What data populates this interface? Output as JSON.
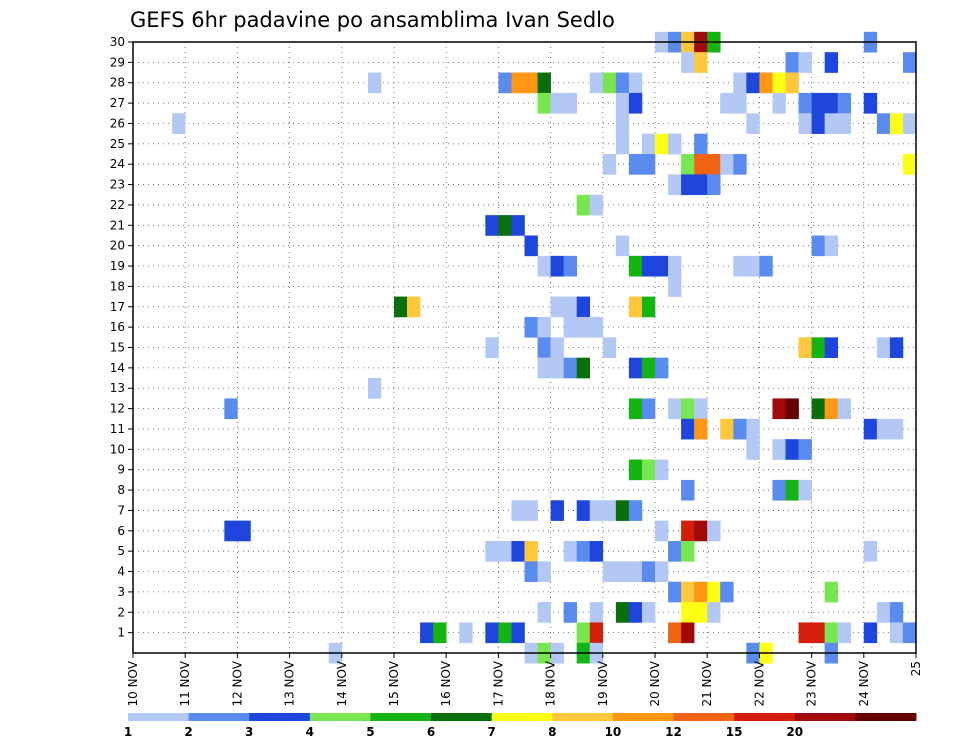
{
  "chart_data": {
    "type": "heatmap",
    "title": "GEFS 6hr padavine po ansamblima Ivan Sedlo",
    "xlabel": "",
    "ylabel": "",
    "x_range": [
      10,
      25
    ],
    "y_range": [
      0,
      30
    ],
    "x_tick_labels": [
      "10 NOV",
      "11 NOV",
      "12 NOV",
      "13 NOV",
      "14 NOV",
      "15 NOV",
      "16 NOV",
      "17 NOV",
      "18 NOV",
      "19 NOV",
      "20 NOV",
      "21 NOV",
      "22 NOV",
      "23 NOV",
      "24 NOV",
      "25"
    ],
    "y_tick_labels": [
      "1",
      "2",
      "3",
      "4",
      "5",
      "6",
      "7",
      "8",
      "9",
      "10",
      "11",
      "12",
      "13",
      "14",
      "15",
      "16",
      "17",
      "18",
      "19",
      "20",
      "21",
      "22",
      "23",
      "24",
      "25",
      "26",
      "27",
      "28",
      "29",
      "30"
    ],
    "grid": true,
    "colorbar": {
      "colors": [
        "#b4c8f5",
        "#5a8cf0",
        "#1e46dc",
        "#78e650",
        "#14b414",
        "#0a6e0a",
        "#ffff14",
        "#ffc83c",
        "#ff9614",
        "#f06414",
        "#d21e0a",
        "#a00a0a",
        "#640000"
      ],
      "labels": [
        "1",
        "2",
        "3",
        "4",
        "5",
        "6",
        "7",
        "8",
        "10",
        "12",
        "15",
        "20"
      ]
    },
    "cells": [
      [
        30,
        20.0,
        0
      ],
      [
        30,
        20.25,
        1
      ],
      [
        30,
        20.5,
        7
      ],
      [
        30,
        20.75,
        11
      ],
      [
        30,
        21.0,
        4
      ],
      [
        30,
        24.0,
        1
      ],
      [
        29,
        20.5,
        0
      ],
      [
        29,
        20.75,
        7
      ],
      [
        29,
        22.5,
        1
      ],
      [
        29,
        22.75,
        0
      ],
      [
        29,
        23.25,
        2
      ],
      [
        29,
        24.75,
        1
      ],
      [
        28,
        14.5,
        0
      ],
      [
        28,
        17.0,
        1
      ],
      [
        28,
        17.25,
        8
      ],
      [
        28,
        17.5,
        8
      ],
      [
        28,
        17.75,
        5
      ],
      [
        28,
        18.75,
        0
      ],
      [
        28,
        19.0,
        3
      ],
      [
        28,
        19.25,
        1
      ],
      [
        28,
        19.5,
        0
      ],
      [
        28,
        21.5,
        0
      ],
      [
        28,
        21.75,
        2
      ],
      [
        28,
        22.0,
        8
      ],
      [
        28,
        22.25,
        6
      ],
      [
        28,
        22.5,
        7
      ],
      [
        27,
        17.75,
        3
      ],
      [
        27,
        18.0,
        0
      ],
      [
        27,
        18.25,
        0
      ],
      [
        27,
        19.25,
        0
      ],
      [
        27,
        19.5,
        2
      ],
      [
        27,
        21.25,
        0
      ],
      [
        27,
        21.5,
        0
      ],
      [
        27,
        22.25,
        0
      ],
      [
        27,
        22.75,
        1
      ],
      [
        27,
        23.0,
        2
      ],
      [
        27,
        23.25,
        2
      ],
      [
        27,
        23.5,
        1
      ],
      [
        27,
        24.0,
        2
      ],
      [
        26,
        10.75,
        0
      ],
      [
        26,
        19.25,
        0
      ],
      [
        26,
        21.75,
        0
      ],
      [
        26,
        22.75,
        0
      ],
      [
        26,
        23.0,
        2
      ],
      [
        26,
        23.25,
        0
      ],
      [
        26,
        23.5,
        0
      ],
      [
        26,
        24.25,
        1
      ],
      [
        26,
        24.5,
        6
      ],
      [
        26,
        24.75,
        0
      ],
      [
        25,
        19.25,
        0
      ],
      [
        25,
        19.75,
        0
      ],
      [
        25,
        20.0,
        6
      ],
      [
        25,
        20.25,
        0
      ],
      [
        25,
        20.75,
        1
      ],
      [
        24,
        19.0,
        0
      ],
      [
        24,
        19.5,
        1
      ],
      [
        24,
        19.75,
        1
      ],
      [
        24,
        20.5,
        3
      ],
      [
        24,
        20.75,
        9
      ],
      [
        24,
        21.0,
        9
      ],
      [
        24,
        21.25,
        0
      ],
      [
        24,
        21.5,
        1
      ],
      [
        24,
        24.75,
        6
      ],
      [
        23,
        20.25,
        0
      ],
      [
        23,
        20.5,
        2
      ],
      [
        23,
        20.75,
        2
      ],
      [
        23,
        21.0,
        1
      ],
      [
        22,
        18.5,
        3
      ],
      [
        22,
        18.75,
        0
      ],
      [
        21,
        16.75,
        2
      ],
      [
        21,
        17.0,
        5
      ],
      [
        21,
        17.25,
        2
      ],
      [
        20,
        17.5,
        2
      ],
      [
        20,
        19.25,
        0
      ],
      [
        20,
        23.0,
        1
      ],
      [
        20,
        23.25,
        0
      ],
      [
        19,
        17.75,
        0
      ],
      [
        19,
        18.0,
        2
      ],
      [
        19,
        18.25,
        1
      ],
      [
        19,
        19.5,
        4
      ],
      [
        19,
        19.75,
        2
      ],
      [
        19,
        20.0,
        2
      ],
      [
        19,
        20.25,
        0
      ],
      [
        19,
        21.5,
        0
      ],
      [
        19,
        21.75,
        0
      ],
      [
        19,
        22.0,
        1
      ],
      [
        18,
        20.25,
        0
      ],
      [
        17,
        15.0,
        5
      ],
      [
        17,
        15.25,
        7
      ],
      [
        17,
        18.0,
        0
      ],
      [
        17,
        18.25,
        0
      ],
      [
        17,
        18.5,
        2
      ],
      [
        17,
        19.5,
        7
      ],
      [
        17,
        19.75,
        4
      ],
      [
        16,
        17.5,
        1
      ],
      [
        16,
        17.75,
        0
      ],
      [
        16,
        18.25,
        0
      ],
      [
        16,
        18.5,
        0
      ],
      [
        16,
        18.75,
        0
      ],
      [
        15,
        16.75,
        0
      ],
      [
        15,
        17.75,
        1
      ],
      [
        15,
        18.0,
        0
      ],
      [
        15,
        19.0,
        0
      ],
      [
        15,
        22.75,
        7
      ],
      [
        15,
        23.0,
        4
      ],
      [
        15,
        23.25,
        2
      ],
      [
        15,
        24.25,
        0
      ],
      [
        15,
        24.5,
        2
      ],
      [
        14,
        17.75,
        0
      ],
      [
        14,
        18.0,
        0
      ],
      [
        14,
        18.25,
        1
      ],
      [
        14,
        18.5,
        5
      ],
      [
        14,
        19.5,
        2
      ],
      [
        14,
        19.75,
        4
      ],
      [
        14,
        20.0,
        1
      ],
      [
        13,
        14.5,
        0
      ],
      [
        12,
        11.75,
        1
      ],
      [
        12,
        19.5,
        4
      ],
      [
        12,
        19.75,
        1
      ],
      [
        12,
        20.25,
        0
      ],
      [
        12,
        20.5,
        3
      ],
      [
        12,
        20.75,
        0
      ],
      [
        12,
        22.25,
        11
      ],
      [
        12,
        22.5,
        12
      ],
      [
        12,
        23.0,
        5
      ],
      [
        12,
        23.25,
        8
      ],
      [
        12,
        23.5,
        0
      ],
      [
        11,
        20.5,
        2
      ],
      [
        11,
        20.75,
        8
      ],
      [
        11,
        21.25,
        7
      ],
      [
        11,
        21.5,
        1
      ],
      [
        11,
        21.75,
        0
      ],
      [
        11,
        24.0,
        2
      ],
      [
        11,
        24.25,
        0
      ],
      [
        11,
        24.5,
        0
      ],
      [
        10,
        21.75,
        0
      ],
      [
        10,
        22.25,
        0
      ],
      [
        10,
        22.5,
        2
      ],
      [
        10,
        22.75,
        1
      ],
      [
        9,
        19.5,
        4
      ],
      [
        9,
        19.75,
        3
      ],
      [
        9,
        20.0,
        0
      ],
      [
        8,
        20.5,
        1
      ],
      [
        8,
        22.25,
        1
      ],
      [
        8,
        22.5,
        4
      ],
      [
        8,
        22.75,
        0
      ],
      [
        7,
        17.25,
        0
      ],
      [
        7,
        17.5,
        0
      ],
      [
        7,
        18.0,
        2
      ],
      [
        7,
        18.5,
        2
      ],
      [
        7,
        18.75,
        0
      ],
      [
        7,
        19.0,
        0
      ],
      [
        7,
        19.25,
        5
      ],
      [
        7,
        19.5,
        1
      ],
      [
        6,
        11.75,
        2
      ],
      [
        6,
        12.0,
        2
      ],
      [
        6,
        20.0,
        0
      ],
      [
        6,
        20.5,
        10
      ],
      [
        6,
        20.75,
        11
      ],
      [
        6,
        21.0,
        0
      ],
      [
        5,
        16.75,
        0
      ],
      [
        5,
        17.0,
        0
      ],
      [
        5,
        17.25,
        2
      ],
      [
        5,
        17.5,
        7
      ],
      [
        5,
        18.25,
        0
      ],
      [
        5,
        18.5,
        1
      ],
      [
        5,
        18.75,
        2
      ],
      [
        5,
        20.25,
        1
      ],
      [
        5,
        20.5,
        3
      ],
      [
        5,
        24.0,
        0
      ],
      [
        4,
        17.5,
        1
      ],
      [
        4,
        17.75,
        0
      ],
      [
        4,
        19.0,
        0
      ],
      [
        4,
        19.25,
        0
      ],
      [
        4,
        19.5,
        0
      ],
      [
        4,
        19.75,
        1
      ],
      [
        4,
        20.0,
        0
      ],
      [
        3,
        20.25,
        1
      ],
      [
        3,
        20.5,
        7
      ],
      [
        3,
        20.75,
        8
      ],
      [
        3,
        21.0,
        6
      ],
      [
        3,
        21.25,
        1
      ],
      [
        3,
        23.25,
        3
      ],
      [
        2,
        17.75,
        0
      ],
      [
        2,
        18.25,
        1
      ],
      [
        2,
        18.75,
        0
      ],
      [
        2,
        19.25,
        5
      ],
      [
        2,
        19.5,
        2
      ],
      [
        2,
        19.75,
        0
      ],
      [
        2,
        20.5,
        6
      ],
      [
        2,
        20.75,
        6
      ],
      [
        2,
        21.0,
        0
      ],
      [
        2,
        24.25,
        0
      ],
      [
        2,
        24.5,
        1
      ],
      [
        1,
        15.5,
        2
      ],
      [
        1,
        15.75,
        4
      ],
      [
        1,
        16.25,
        0
      ],
      [
        1,
        16.75,
        2
      ],
      [
        1,
        17.0,
        4
      ],
      [
        1,
        17.25,
        2
      ],
      [
        1,
        18.5,
        3
      ],
      [
        1,
        18.75,
        10
      ],
      [
        1,
        20.25,
        9
      ],
      [
        1,
        20.5,
        11
      ],
      [
        1,
        22.75,
        10
      ],
      [
        1,
        23.0,
        10
      ],
      [
        1,
        23.25,
        3
      ],
      [
        1,
        23.5,
        0
      ],
      [
        1,
        24.0,
        2
      ],
      [
        1,
        24.5,
        0
      ],
      [
        1,
        24.75,
        1
      ],
      [
        0,
        13.75,
        0
      ],
      [
        0,
        17.5,
        0
      ],
      [
        0,
        17.75,
        3
      ],
      [
        0,
        18.0,
        0
      ],
      [
        0,
        18.5,
        4
      ],
      [
        0,
        18.75,
        0
      ],
      [
        0,
        21.75,
        1
      ],
      [
        0,
        22.0,
        6
      ],
      [
        0,
        23.25,
        1
      ]
    ]
  }
}
